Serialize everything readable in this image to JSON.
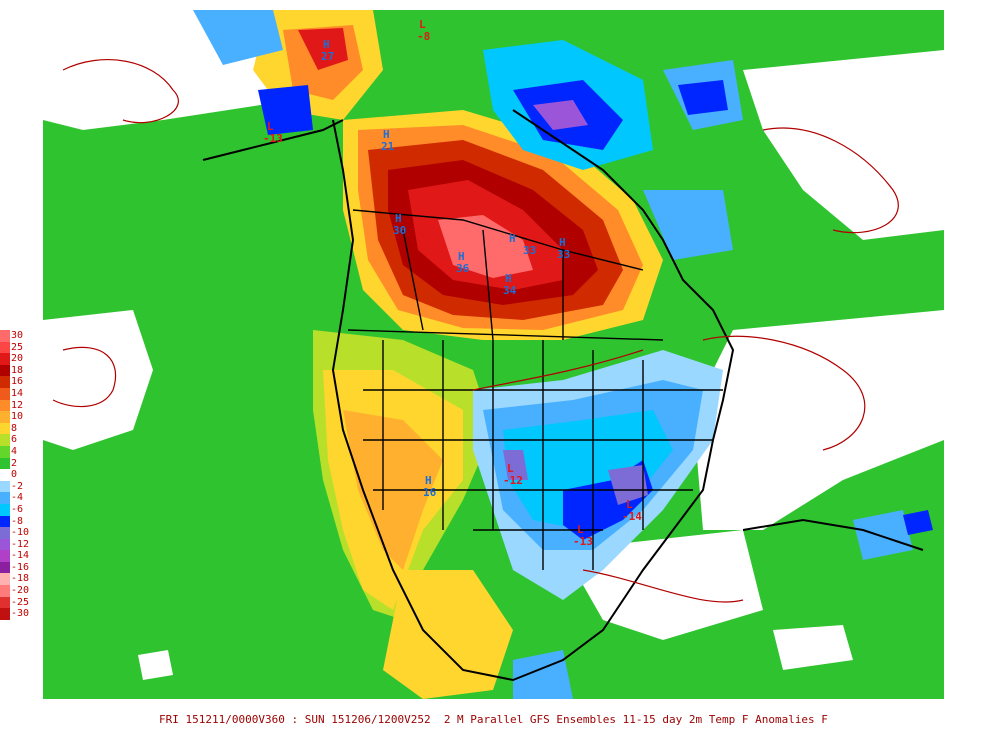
{
  "caption": "FRI 151211/0000V360 : SUN 151206/1200V252  2 M Parallel GFS Ensembles 11-15 day 2m Temp F Anomalies F",
  "legend": [
    {
      "label": "30",
      "color": "#ff6b6b"
    },
    {
      "label": "25",
      "color": "#ff4646"
    },
    {
      "label": "20",
      "color": "#e01818"
    },
    {
      "label": "18",
      "color": "#b00000"
    },
    {
      "label": "16",
      "color": "#d02a00"
    },
    {
      "label": "14",
      "color": "#f05a1a"
    },
    {
      "label": "12",
      "color": "#ff8c28"
    },
    {
      "label": "10",
      "color": "#ffb02e"
    },
    {
      "label": "8",
      "color": "#ffd62e"
    },
    {
      "label": "6",
      "color": "#b8e02a"
    },
    {
      "label": "4",
      "color": "#62d62a"
    },
    {
      "label": "2",
      "color": "#2fc32f"
    },
    {
      "label": "0",
      "color": "#ffffff"
    },
    {
      "label": "-2",
      "color": "#9ad8ff"
    },
    {
      "label": "-4",
      "color": "#49b0ff"
    },
    {
      "label": "-6",
      "color": "#00c8ff"
    },
    {
      "label": "-8",
      "color": "#0026ff"
    },
    {
      "label": "-10",
      "color": "#7d6bd6"
    },
    {
      "label": "-12",
      "color": "#9a55d8"
    },
    {
      "label": "-14",
      "color": "#b040c8"
    },
    {
      "label": "-16",
      "color": "#8a1fa0"
    },
    {
      "label": "-18",
      "color": "#ffb0b0"
    },
    {
      "label": "-20",
      "color": "#ff7a7a"
    },
    {
      "label": "-25",
      "color": "#e03030"
    },
    {
      "label": "-30",
      "color": "#c01010"
    }
  ],
  "map_labels": {
    "h_upper_midwest": "H",
    "v_upper_midwest": "33",
    "h_central_plains": "H",
    "v_central_plains": "36",
    "h_manitoba": "H",
    "v_manitoba": "34",
    "h_alberta": "H",
    "v_alberta": "30",
    "h_hudson": "H",
    "v_hudson": "33",
    "h_bc": "H",
    "v_bc": "21",
    "l_texas": "L",
    "v_texas": "-13",
    "l_southeast": "L",
    "v_southeast": "-14",
    "l_oklahoma": "L",
    "v_oklahoma": "-12",
    "l_arctic": "L",
    "v_arctic": "-8",
    "h_alaska": "H",
    "v_alaska": "27",
    "h_southwest": "H",
    "v_southwest": "16",
    "l_alaska_west": "L",
    "v_alaska_west": "-13"
  },
  "colors": {
    "background": "#2fc32f",
    "land_outline": "#000000",
    "contour": "#b00000"
  }
}
